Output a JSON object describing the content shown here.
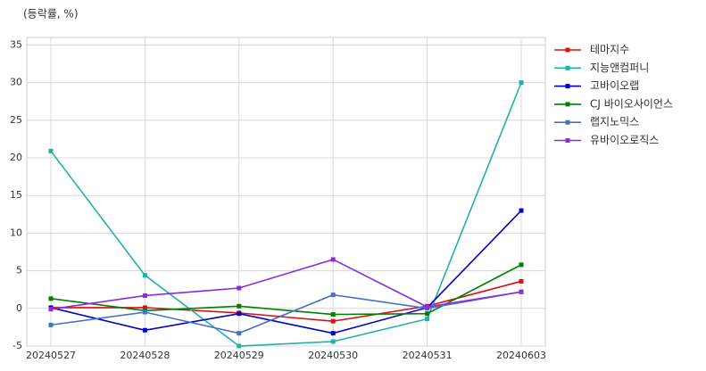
{
  "chart_data": {
    "type": "line",
    "annotation": "(등락률, %)",
    "categories": [
      "20240527",
      "20240528",
      "20240529",
      "20240530",
      "20240531",
      "20240603"
    ],
    "series": [
      {
        "name": "테마지수",
        "color": "#dd1111",
        "values": [
          0.1,
          0.1,
          -0.6,
          -1.7,
          0.3,
          3.6
        ]
      },
      {
        "name": "지능앤컴퍼니",
        "color": "#20b2aa",
        "values": [
          20.9,
          4.4,
          -5,
          -4.4,
          -1.4,
          30
        ]
      },
      {
        "name": "고바이오랩",
        "color": "#0000cc",
        "values": [
          0.1,
          -2.9,
          -0.7,
          -3.3,
          0.1,
          13
        ]
      },
      {
        "name": "CJ 바이오사이언스",
        "color": "#008000",
        "values": [
          1.3,
          -0.3,
          0.3,
          -0.8,
          -0.7,
          5.8
        ]
      },
      {
        "name": "랩지노믹스",
        "color": "#4472c4",
        "values": [
          -2.2,
          -0.5,
          -3.3,
          1.8,
          0,
          2.2
        ]
      },
      {
        "name": "유바이오로직스",
        "color": "#8a2be2",
        "values": [
          -0.1,
          1.7,
          2.7,
          6.5,
          0.2,
          2.2
        ]
      }
    ],
    "ylim": [
      -5,
      36
    ],
    "yticks": [
      -5,
      0,
      5,
      10,
      15,
      20,
      25,
      30,
      35
    ],
    "grid": true,
    "legend": "right"
  }
}
